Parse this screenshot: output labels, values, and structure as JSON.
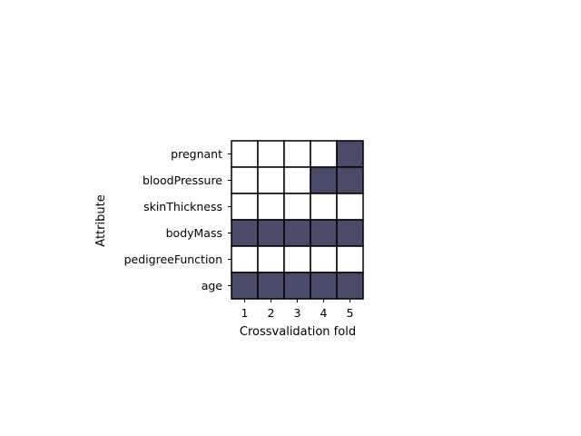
{
  "chart_data": {
    "type": "heatmap",
    "title": "",
    "xlabel": "Crossvalidation fold",
    "ylabel": "Attribute",
    "x_categories": [
      "1",
      "2",
      "3",
      "4",
      "5"
    ],
    "y_categories": [
      "pregnant",
      "bloodPressure",
      "skinThickness",
      "bodyMass",
      "pedigreeFunction",
      "age"
    ],
    "values": [
      [
        0,
        0,
        0,
        0,
        1
      ],
      [
        0,
        0,
        0,
        1,
        1
      ],
      [
        0,
        0,
        0,
        0,
        0
      ],
      [
        1,
        1,
        1,
        1,
        1
      ],
      [
        0,
        0,
        0,
        0,
        0
      ],
      [
        1,
        1,
        1,
        1,
        1
      ]
    ],
    "colors": {
      "selected": "#4a4a6a",
      "unselected": "#ffffff",
      "cell_border": "#000000"
    },
    "grid": false,
    "legend": "none"
  }
}
